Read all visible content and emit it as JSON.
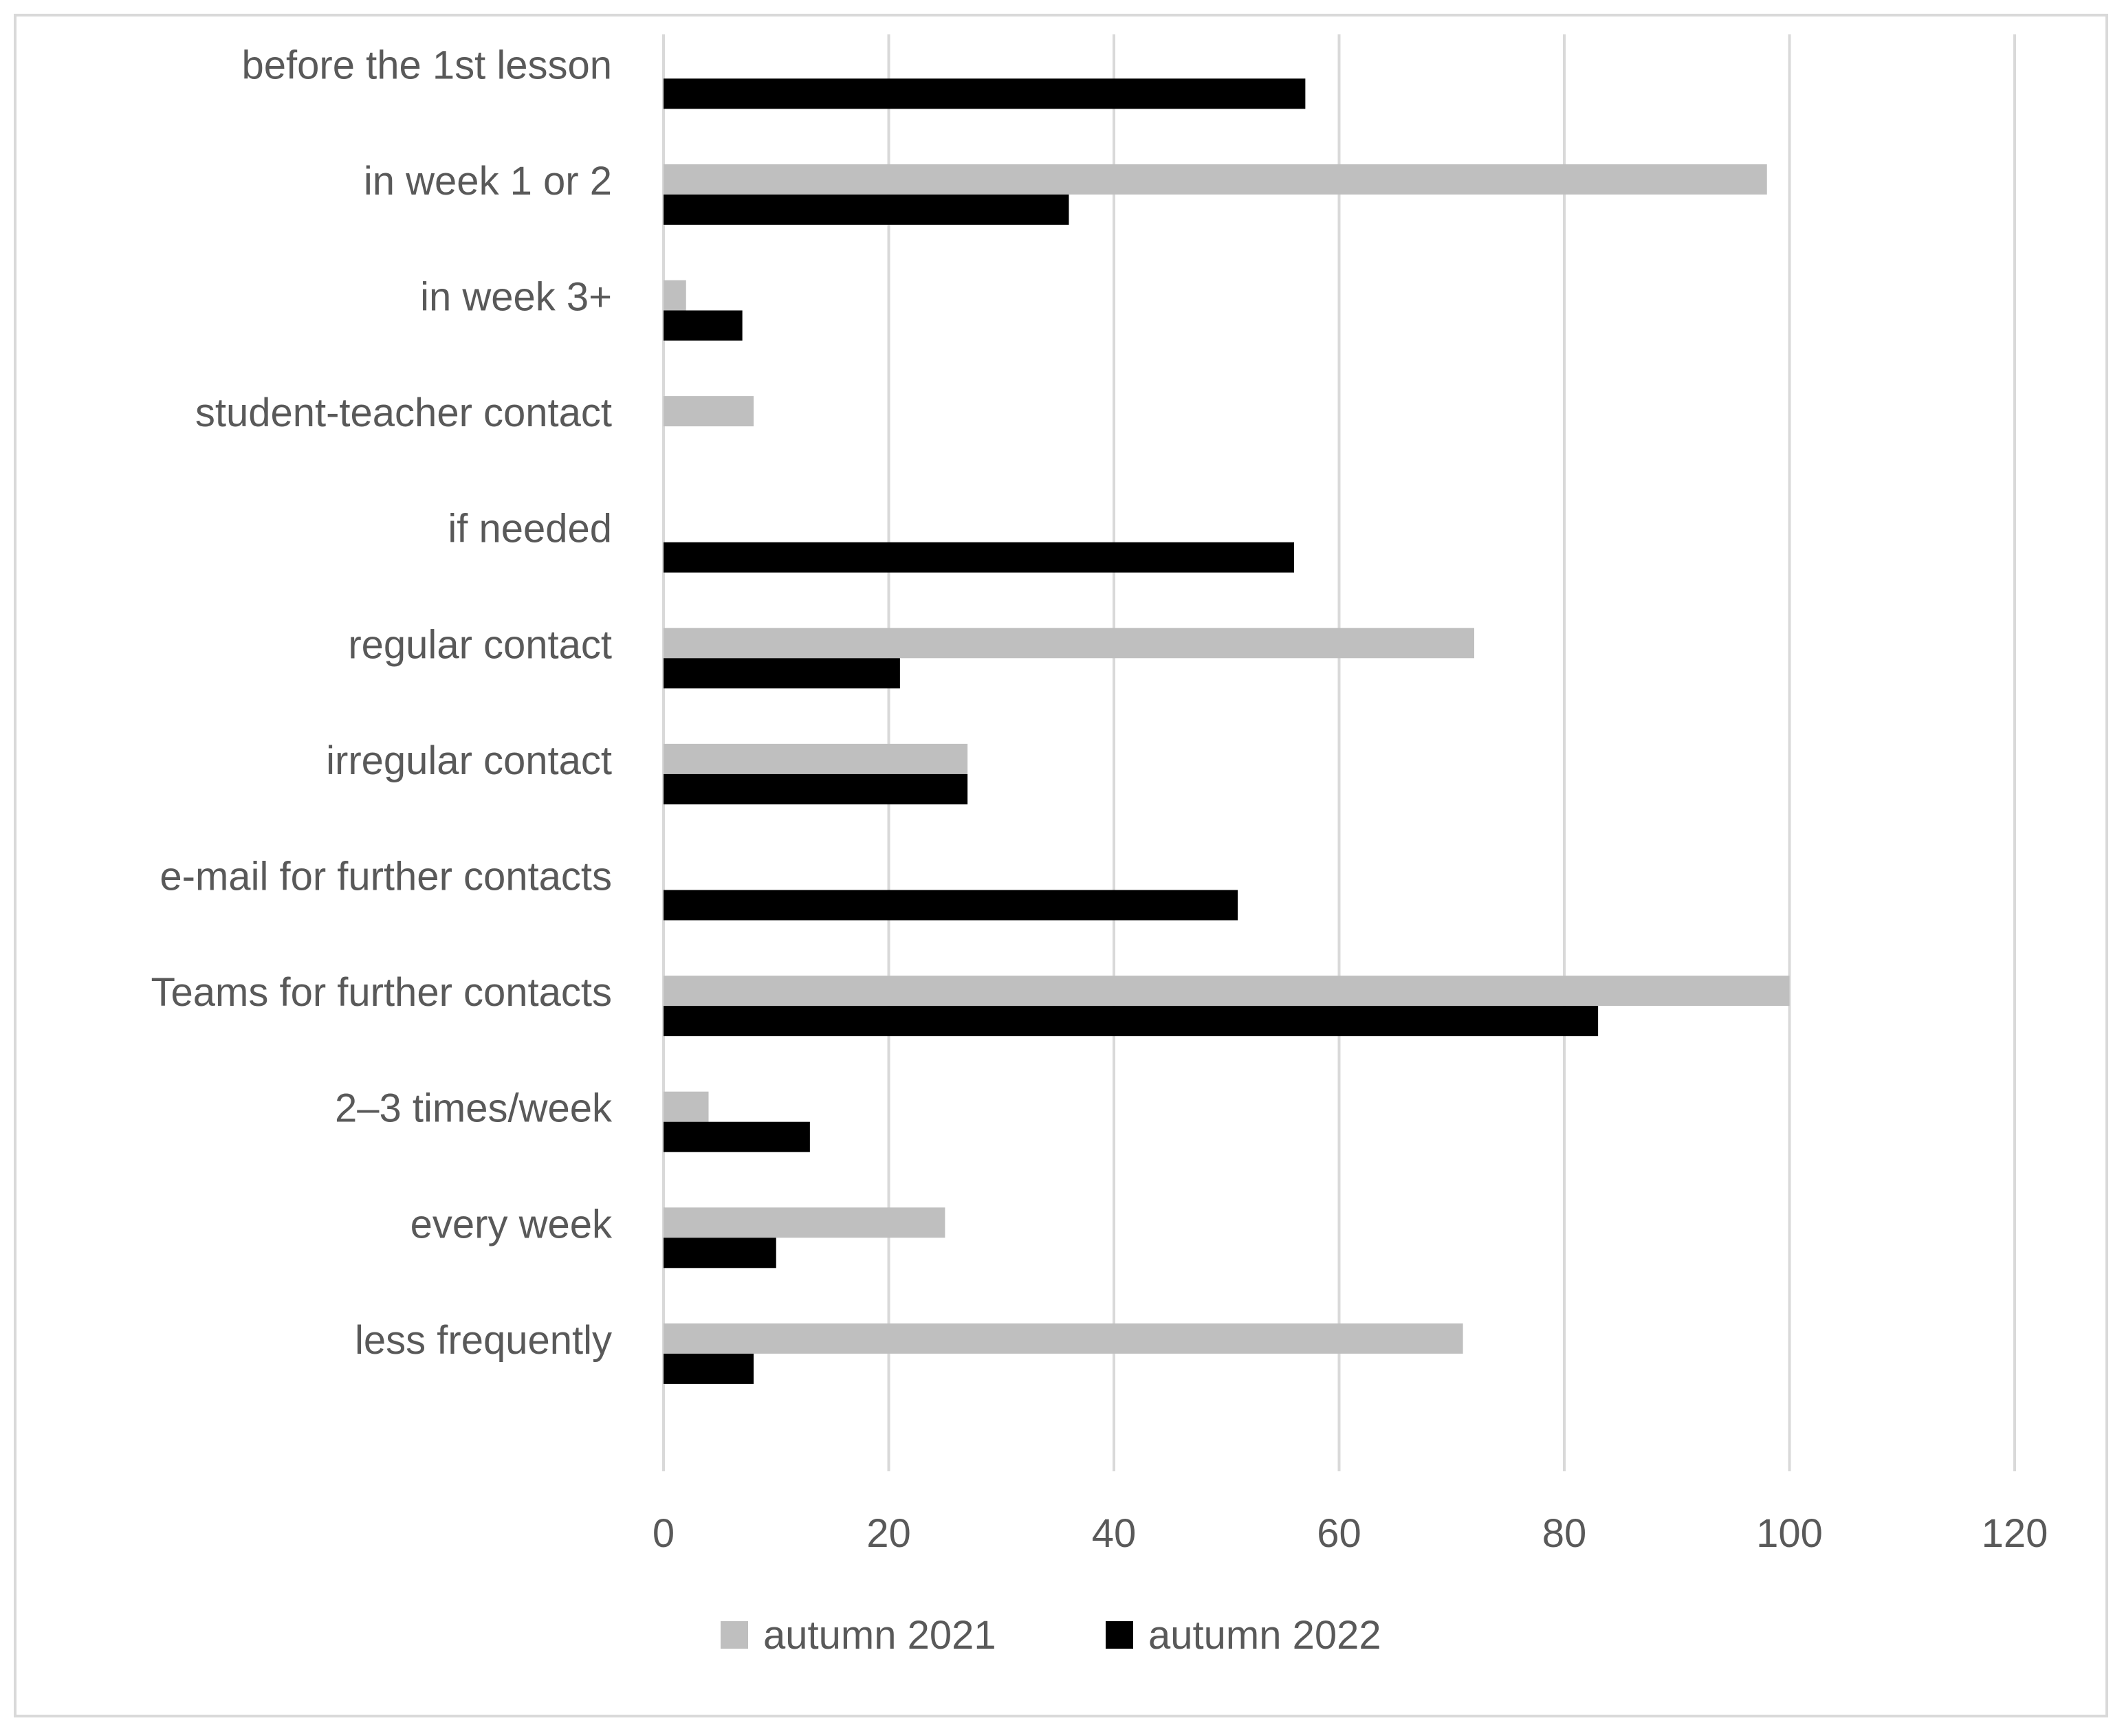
{
  "chart_data": {
    "type": "bar",
    "orientation": "horizontal",
    "categories": [
      "before the 1st lesson",
      "in week 1 or 2",
      "in week 3+",
      "student-teacher contact",
      "if needed",
      "regular contact",
      "irregular contact",
      "e-mail for further contacts",
      "Teams for further contacts",
      "2–3 times/week",
      "every week",
      "less frequently"
    ],
    "series": [
      {
        "name": "autumn 2021",
        "color": "#bfbfbf",
        "values": [
          0,
          98,
          2,
          8,
          0,
          72,
          27,
          0,
          100,
          4,
          25,
          71
        ]
      },
      {
        "name": "autumn 2022",
        "color": "#000000",
        "values": [
          57,
          36,
          7,
          0,
          56,
          21,
          27,
          51,
          83,
          13,
          10,
          8
        ]
      }
    ],
    "xlim": [
      0,
      120
    ],
    "xticks": [
      0,
      20,
      40,
      60,
      80,
      100,
      120
    ],
    "grid": "vertical",
    "legend": "bottom",
    "gridline_color": "#d9d9d9"
  }
}
